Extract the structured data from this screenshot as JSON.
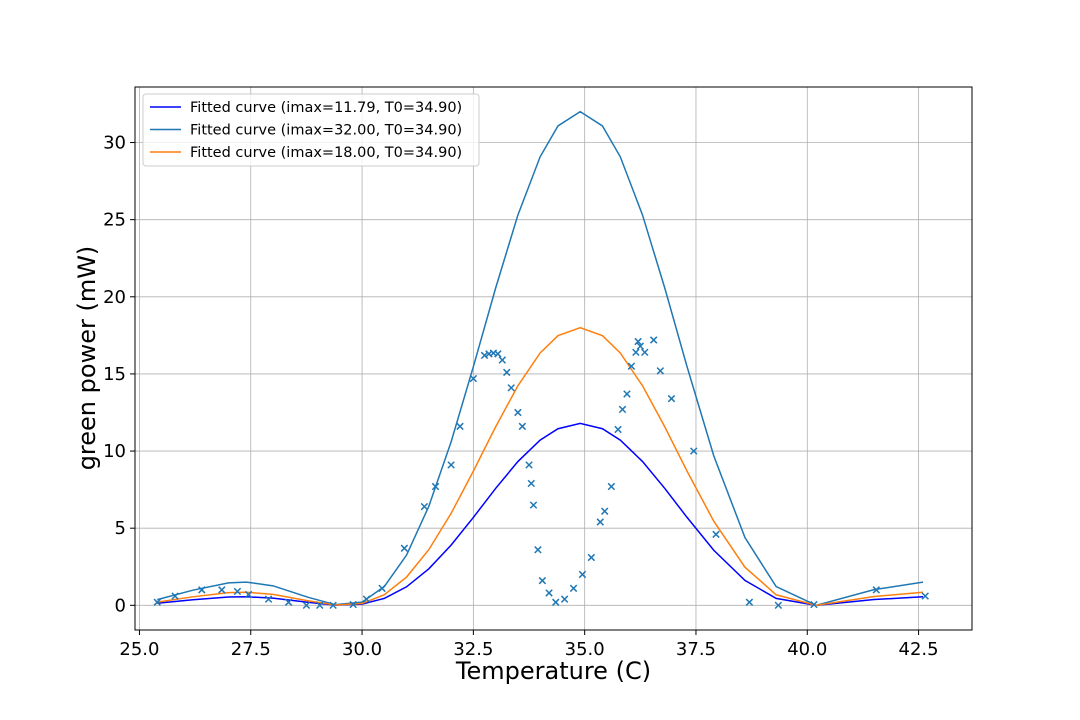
{
  "chart_data": {
    "type": "line",
    "title": "",
    "xlabel": "Temperature (C)",
    "ylabel": "green power (mW)",
    "xlim": [
      24.9,
      43.7
    ],
    "ylim": [
      -1.6,
      33.6
    ],
    "xticks": [
      25.0,
      27.5,
      30.0,
      32.5,
      35.0,
      37.5,
      40.0,
      42.5
    ],
    "xtick_labels": [
      "25.0",
      "27.5",
      "30.0",
      "32.5",
      "35.0",
      "37.5",
      "40.0",
      "42.5"
    ],
    "yticks": [
      0,
      5,
      10,
      15,
      20,
      25,
      30
    ],
    "ytick_labels": [
      "0",
      "5",
      "10",
      "15",
      "20",
      "25",
      "30"
    ],
    "grid": true,
    "legend_position": "top-left",
    "series": [
      {
        "name": "Fitted curve (imax=11.79, T0=34.90)",
        "kind": "line",
        "color": "#0000ff",
        "imax": 11.79,
        "T0": 34.9
      },
      {
        "name": "Fitted curve (imax=32.00, T0=34.90)",
        "kind": "line",
        "color": "#1f77b4",
        "imax": 32.0,
        "T0": 34.9
      },
      {
        "name": "Fitted curve (imax=18.00, T0=34.90)",
        "kind": "line",
        "color": "#ff7f0e",
        "imax": 18.0,
        "T0": 34.9
      },
      {
        "kind": "scatter",
        "marker": "x",
        "color": "#1f77b4",
        "points": [
          [
            25.4,
            0.2
          ],
          [
            25.8,
            0.6
          ],
          [
            26.4,
            1.0
          ],
          [
            26.85,
            1.0
          ],
          [
            27.2,
            0.9
          ],
          [
            27.45,
            0.7
          ],
          [
            27.9,
            0.4
          ],
          [
            28.35,
            0.2
          ],
          [
            28.75,
            0.0
          ],
          [
            29.05,
            0.0
          ],
          [
            29.35,
            0.0
          ],
          [
            29.8,
            0.05
          ],
          [
            30.1,
            0.4
          ],
          [
            30.45,
            1.1
          ],
          [
            30.95,
            3.7
          ],
          [
            31.4,
            6.4
          ],
          [
            31.65,
            7.7
          ],
          [
            32.0,
            9.1
          ],
          [
            32.2,
            11.6
          ],
          [
            32.5,
            14.7
          ],
          [
            32.75,
            16.2
          ],
          [
            32.85,
            16.3
          ],
          [
            32.95,
            16.35
          ],
          [
            33.05,
            16.3
          ],
          [
            33.15,
            15.9
          ],
          [
            33.25,
            15.1
          ],
          [
            33.35,
            14.1
          ],
          [
            33.5,
            12.5
          ],
          [
            33.6,
            11.6
          ],
          [
            33.75,
            9.1
          ],
          [
            33.8,
            7.9
          ],
          [
            33.85,
            6.5
          ],
          [
            33.95,
            3.6
          ],
          [
            34.05,
            1.6
          ],
          [
            34.2,
            0.8
          ],
          [
            34.35,
            0.2
          ],
          [
            34.55,
            0.4
          ],
          [
            34.75,
            1.1
          ],
          [
            34.95,
            2.0
          ],
          [
            35.15,
            3.1
          ],
          [
            35.35,
            5.4
          ],
          [
            35.45,
            6.1
          ],
          [
            35.6,
            7.7
          ],
          [
            35.75,
            11.4
          ],
          [
            35.85,
            12.7
          ],
          [
            35.95,
            13.7
          ],
          [
            36.05,
            15.5
          ],
          [
            36.15,
            16.4
          ],
          [
            36.2,
            17.1
          ],
          [
            36.25,
            16.8
          ],
          [
            36.35,
            16.4
          ],
          [
            36.55,
            17.2
          ],
          [
            36.7,
            15.2
          ],
          [
            36.95,
            13.4
          ],
          [
            37.45,
            10.0
          ],
          [
            37.95,
            4.6
          ],
          [
            38.7,
            0.2
          ],
          [
            39.35,
            0.0
          ],
          [
            40.15,
            0.05
          ],
          [
            41.55,
            1.0
          ],
          [
            42.65,
            0.6
          ]
        ]
      }
    ],
    "curve_x": [
      25.4,
      26.2,
      27.0,
      27.4,
      28.0,
      28.8,
      29.4,
      30.0,
      30.5,
      31.0,
      31.5,
      32.0,
      32.5,
      33.0,
      33.5,
      34.0,
      34.4,
      34.9,
      35.4,
      35.8,
      36.3,
      36.8,
      37.3,
      37.9,
      38.6,
      39.3,
      40.2,
      41.5,
      42.6
    ]
  }
}
